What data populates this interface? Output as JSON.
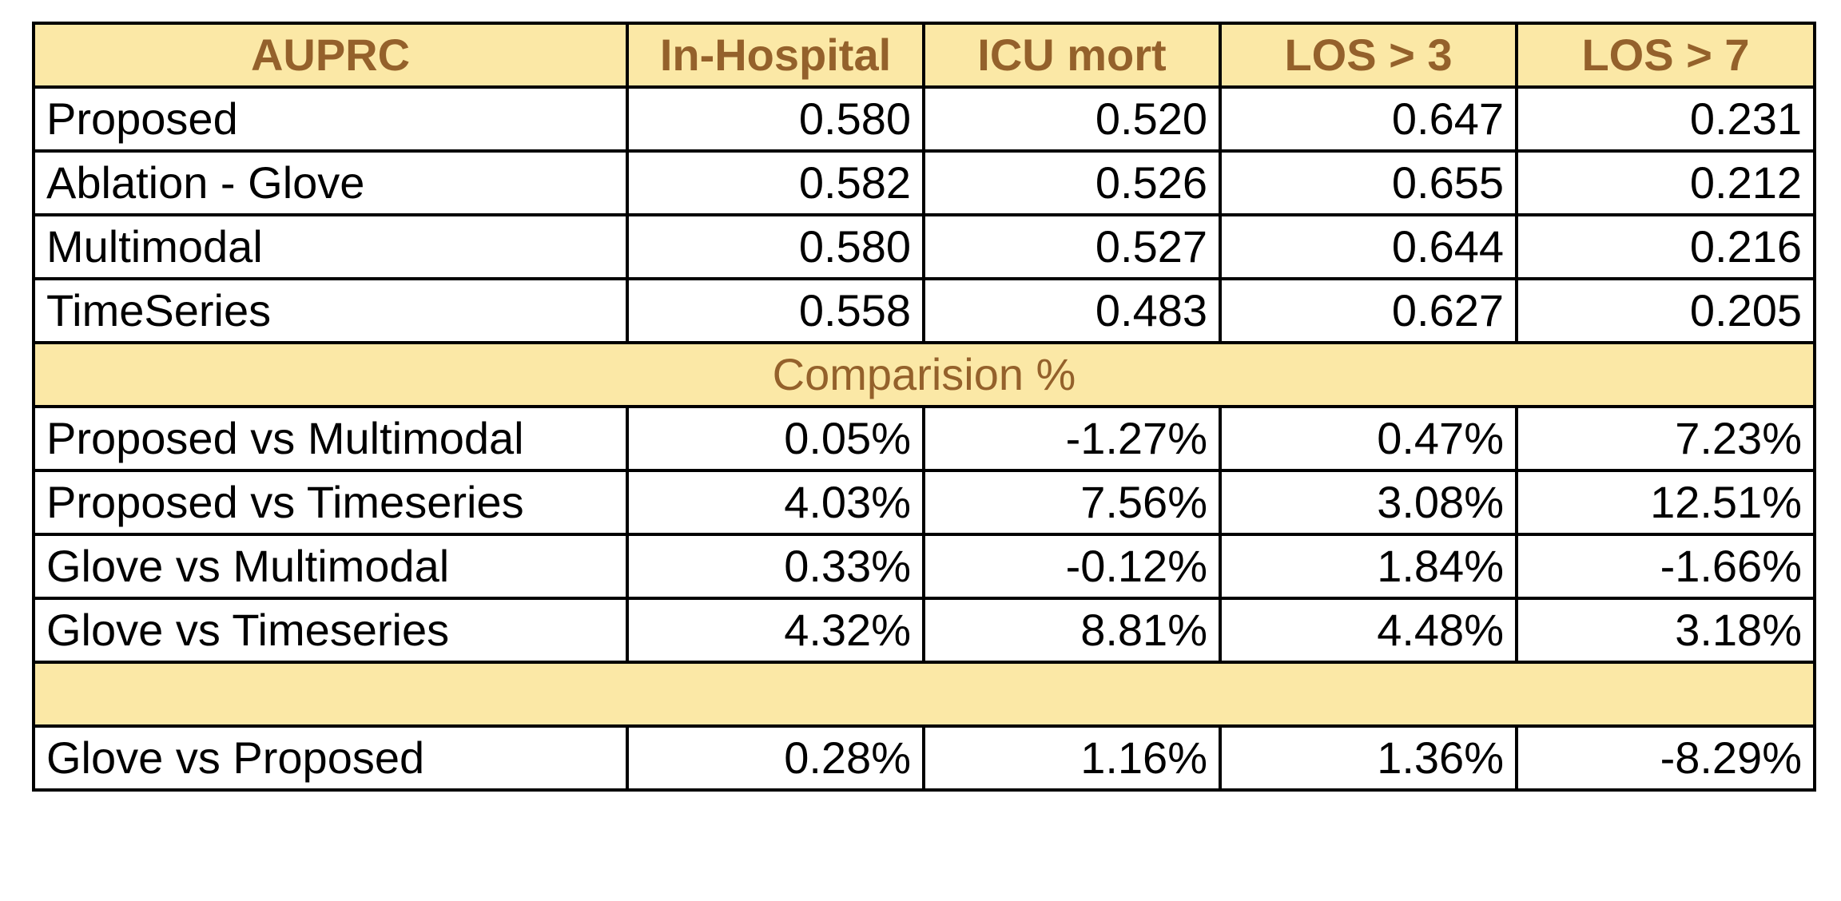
{
  "chart_data": {
    "type": "table",
    "columns": [
      "AUPRC",
      "In-Hospital",
      "ICU mort",
      "LOS > 3",
      "LOS > 7"
    ],
    "rows": [
      [
        "Proposed",
        "0.580",
        "0.520",
        "0.647",
        "0.231"
      ],
      [
        "Ablation - Glove",
        "0.582",
        "0.526",
        "0.655",
        "0.212"
      ],
      [
        "Multimodal",
        "0.580",
        "0.527",
        "0.644",
        "0.216"
      ],
      [
        "TimeSeries",
        "0.558",
        "0.483",
        "0.627",
        "0.205"
      ]
    ],
    "comparison_title": "Comparision %",
    "comparison_rows": [
      [
        "Proposed vs Multimodal",
        "0.05%",
        "-1.27%",
        "0.47%",
        "7.23%"
      ],
      [
        "Proposed vs Timeseries",
        "4.03%",
        "7.56%",
        "3.08%",
        "12.51%"
      ],
      [
        "Glove vs Multimodal",
        "0.33%",
        "-0.12%",
        "1.84%",
        "-1.66%"
      ],
      [
        "Glove vs Timeseries",
        "4.32%",
        "8.81%",
        "4.48%",
        "3.18%"
      ]
    ],
    "separator_label": "",
    "final_rows": [
      [
        "Glove vs Proposed",
        "0.28%",
        "1.16%",
        "1.36%",
        "-8.29%"
      ]
    ]
  },
  "colors": {
    "header_background": "#fbe8a6",
    "header_text": "#94612b",
    "border": "#000000",
    "body_text": "#000000"
  }
}
